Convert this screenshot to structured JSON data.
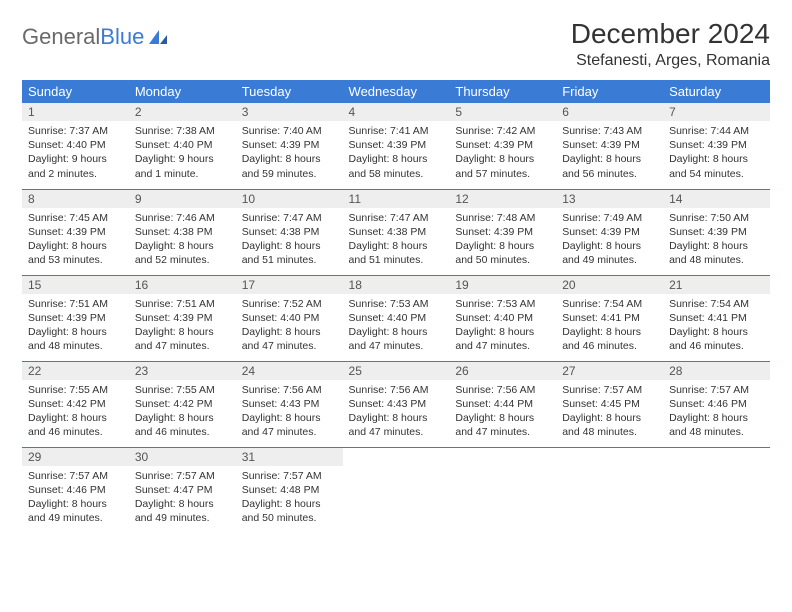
{
  "brand": {
    "part1": "General",
    "part2": "Blue"
  },
  "title": "December 2024",
  "location": "Stefanesti, Arges, Romania",
  "colors": {
    "header_bg": "#3a7bd5",
    "header_text": "#ffffff",
    "daynum_bg": "#eeeeee",
    "row_border": "#3a7bd5",
    "brand_gray": "#6a6a6a",
    "brand_blue": "#3a7bd5"
  },
  "weekdays": [
    "Sunday",
    "Monday",
    "Tuesday",
    "Wednesday",
    "Thursday",
    "Friday",
    "Saturday"
  ],
  "weeks": [
    [
      {
        "n": "1",
        "sunrise": "7:37 AM",
        "sunset": "4:40 PM",
        "daylight": "9 hours and 2 minutes."
      },
      {
        "n": "2",
        "sunrise": "7:38 AM",
        "sunset": "4:40 PM",
        "daylight": "9 hours and 1 minute."
      },
      {
        "n": "3",
        "sunrise": "7:40 AM",
        "sunset": "4:39 PM",
        "daylight": "8 hours and 59 minutes."
      },
      {
        "n": "4",
        "sunrise": "7:41 AM",
        "sunset": "4:39 PM",
        "daylight": "8 hours and 58 minutes."
      },
      {
        "n": "5",
        "sunrise": "7:42 AM",
        "sunset": "4:39 PM",
        "daylight": "8 hours and 57 minutes."
      },
      {
        "n": "6",
        "sunrise": "7:43 AM",
        "sunset": "4:39 PM",
        "daylight": "8 hours and 56 minutes."
      },
      {
        "n": "7",
        "sunrise": "7:44 AM",
        "sunset": "4:39 PM",
        "daylight": "8 hours and 54 minutes."
      }
    ],
    [
      {
        "n": "8",
        "sunrise": "7:45 AM",
        "sunset": "4:39 PM",
        "daylight": "8 hours and 53 minutes."
      },
      {
        "n": "9",
        "sunrise": "7:46 AM",
        "sunset": "4:38 PM",
        "daylight": "8 hours and 52 minutes."
      },
      {
        "n": "10",
        "sunrise": "7:47 AM",
        "sunset": "4:38 PM",
        "daylight": "8 hours and 51 minutes."
      },
      {
        "n": "11",
        "sunrise": "7:47 AM",
        "sunset": "4:38 PM",
        "daylight": "8 hours and 51 minutes."
      },
      {
        "n": "12",
        "sunrise": "7:48 AM",
        "sunset": "4:39 PM",
        "daylight": "8 hours and 50 minutes."
      },
      {
        "n": "13",
        "sunrise": "7:49 AM",
        "sunset": "4:39 PM",
        "daylight": "8 hours and 49 minutes."
      },
      {
        "n": "14",
        "sunrise": "7:50 AM",
        "sunset": "4:39 PM",
        "daylight": "8 hours and 48 minutes."
      }
    ],
    [
      {
        "n": "15",
        "sunrise": "7:51 AM",
        "sunset": "4:39 PM",
        "daylight": "8 hours and 48 minutes."
      },
      {
        "n": "16",
        "sunrise": "7:51 AM",
        "sunset": "4:39 PM",
        "daylight": "8 hours and 47 minutes."
      },
      {
        "n": "17",
        "sunrise": "7:52 AM",
        "sunset": "4:40 PM",
        "daylight": "8 hours and 47 minutes."
      },
      {
        "n": "18",
        "sunrise": "7:53 AM",
        "sunset": "4:40 PM",
        "daylight": "8 hours and 47 minutes."
      },
      {
        "n": "19",
        "sunrise": "7:53 AM",
        "sunset": "4:40 PM",
        "daylight": "8 hours and 47 minutes."
      },
      {
        "n": "20",
        "sunrise": "7:54 AM",
        "sunset": "4:41 PM",
        "daylight": "8 hours and 46 minutes."
      },
      {
        "n": "21",
        "sunrise": "7:54 AM",
        "sunset": "4:41 PM",
        "daylight": "8 hours and 46 minutes."
      }
    ],
    [
      {
        "n": "22",
        "sunrise": "7:55 AM",
        "sunset": "4:42 PM",
        "daylight": "8 hours and 46 minutes."
      },
      {
        "n": "23",
        "sunrise": "7:55 AM",
        "sunset": "4:42 PM",
        "daylight": "8 hours and 46 minutes."
      },
      {
        "n": "24",
        "sunrise": "7:56 AM",
        "sunset": "4:43 PM",
        "daylight": "8 hours and 47 minutes."
      },
      {
        "n": "25",
        "sunrise": "7:56 AM",
        "sunset": "4:43 PM",
        "daylight": "8 hours and 47 minutes."
      },
      {
        "n": "26",
        "sunrise": "7:56 AM",
        "sunset": "4:44 PM",
        "daylight": "8 hours and 47 minutes."
      },
      {
        "n": "27",
        "sunrise": "7:57 AM",
        "sunset": "4:45 PM",
        "daylight": "8 hours and 48 minutes."
      },
      {
        "n": "28",
        "sunrise": "7:57 AM",
        "sunset": "4:46 PM",
        "daylight": "8 hours and 48 minutes."
      }
    ],
    [
      {
        "n": "29",
        "sunrise": "7:57 AM",
        "sunset": "4:46 PM",
        "daylight": "8 hours and 49 minutes."
      },
      {
        "n": "30",
        "sunrise": "7:57 AM",
        "sunset": "4:47 PM",
        "daylight": "8 hours and 49 minutes."
      },
      {
        "n": "31",
        "sunrise": "7:57 AM",
        "sunset": "4:48 PM",
        "daylight": "8 hours and 50 minutes."
      },
      null,
      null,
      null,
      null
    ]
  ],
  "labels": {
    "sunrise": "Sunrise:",
    "sunset": "Sunset:",
    "daylight": "Daylight:"
  }
}
